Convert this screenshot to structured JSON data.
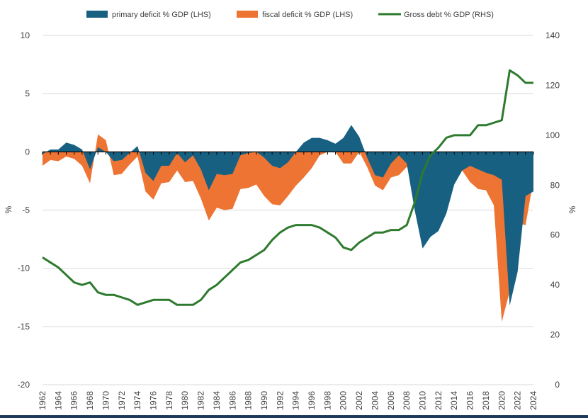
{
  "chart_data": {
    "type": "area+line",
    "years": [
      1962,
      1963,
      1964,
      1965,
      1966,
      1967,
      1968,
      1969,
      1970,
      1971,
      1972,
      1973,
      1974,
      1975,
      1976,
      1977,
      1978,
      1979,
      1980,
      1981,
      1982,
      1983,
      1984,
      1985,
      1986,
      1987,
      1988,
      1989,
      1990,
      1991,
      1992,
      1993,
      1994,
      1995,
      1996,
      1997,
      1998,
      1999,
      2000,
      2001,
      2002,
      2003,
      2004,
      2005,
      2006,
      2007,
      2008,
      2009,
      2010,
      2011,
      2012,
      2013,
      2014,
      2015,
      2016,
      2017,
      2018,
      2019,
      2020,
      2021,
      2022,
      2023,
      2024
    ],
    "xtick_labels": [
      "1962",
      "1964",
      "1966",
      "1968",
      "1970",
      "1972",
      "1974",
      "1976",
      "1978",
      "1980",
      "1982",
      "1984",
      "1986",
      "1988",
      "1990",
      "1992",
      "1994",
      "1996",
      "1998",
      "2000",
      "2002",
      "2004",
      "2006",
      "2008",
      "2010",
      "2012",
      "2014",
      "2016",
      "2018",
      "2020",
      "2022",
      "2024"
    ],
    "series": [
      {
        "name": "primary deficit % GDP (LHS)",
        "type": "area",
        "axis": "left",
        "color": "#176082",
        "values": [
          -0.2,
          0.2,
          0.2,
          0.8,
          0.6,
          0.2,
          -1.5,
          0.4,
          0.0,
          -0.8,
          -0.7,
          -0.1,
          0.5,
          -1.8,
          -2.5,
          -1.2,
          -1.2,
          -0.1,
          -0.9,
          -0.3,
          -1.5,
          -3.3,
          -1.9,
          -2.0,
          -1.9,
          -0.3,
          -0.1,
          0.0,
          -0.5,
          -1.2,
          -1.4,
          -0.9,
          0.0,
          0.8,
          1.2,
          1.2,
          1.0,
          0.7,
          1.2,
          2.3,
          1.3,
          -0.5,
          -2.0,
          -2.2,
          -1.0,
          -0.3,
          -1.0,
          -5.0,
          -8.3,
          -7.3,
          -6.8,
          -5.3,
          -2.8,
          -1.6,
          -1.2,
          -1.5,
          -1.8,
          -2.0,
          -2.4,
          -13.2,
          -10.3,
          -3.8,
          -3.4
        ]
      },
      {
        "name": "fiscal deficit % GDP (LHS)",
        "type": "area",
        "axis": "left",
        "color": "#ed7433",
        "values": [
          -1.2,
          -0.7,
          -0.8,
          -0.4,
          -0.6,
          -1.2,
          -2.7,
          1.5,
          1.0,
          -2.0,
          -1.9,
          -1.1,
          -0.4,
          -3.4,
          -4.1,
          -2.7,
          -2.6,
          -1.6,
          -2.6,
          -2.5,
          -4.0,
          -5.9,
          -4.8,
          -5.0,
          -4.9,
          -3.2,
          -3.1,
          -2.8,
          -3.8,
          -4.5,
          -4.6,
          -3.8,
          -2.9,
          -2.2,
          -1.4,
          -0.3,
          0.0,
          0.0,
          -1.0,
          -1.0,
          0.0,
          -1.3,
          -2.9,
          -3.3,
          -2.2,
          -2.0,
          -1.3,
          -1.7,
          -4.1,
          -2.6,
          -2.3,
          -2.3,
          -1.9,
          -1.6,
          -2.6,
          -3.2,
          -3.3,
          -4.6,
          -14.6,
          -12.0,
          -6.1,
          -6.3,
          -2.4
        ]
      },
      {
        "name": "Gross debt % GDP (RHS)",
        "type": "line",
        "axis": "right",
        "color": "#2e7a2e",
        "values": [
          51,
          49,
          47,
          44,
          41,
          40,
          41,
          37,
          36,
          36,
          35,
          34,
          32,
          33,
          34,
          34,
          34,
          32,
          32,
          32,
          34,
          38,
          40,
          43,
          46,
          49,
          50,
          52,
          54,
          58,
          61,
          63,
          64,
          64,
          64,
          63,
          61,
          59,
          55,
          54,
          57,
          59,
          61,
          61,
          62,
          62,
          64,
          73,
          85,
          92,
          95,
          99,
          100,
          100,
          100,
          104,
          104,
          105,
          106,
          126,
          124,
          121,
          121
        ]
      }
    ],
    "ylim_left": [
      -20,
      10
    ],
    "yticks_left": [
      "10",
      "5",
      "0",
      "-5",
      "-10",
      "-15",
      "-20"
    ],
    "ylim_right": [
      0,
      140
    ],
    "yticks_right": [
      "140",
      "120",
      "100",
      "80",
      "60",
      "40",
      "20",
      "0"
    ],
    "ylabel_left": "%",
    "ylabel_right": "%",
    "legend_position": "top"
  }
}
